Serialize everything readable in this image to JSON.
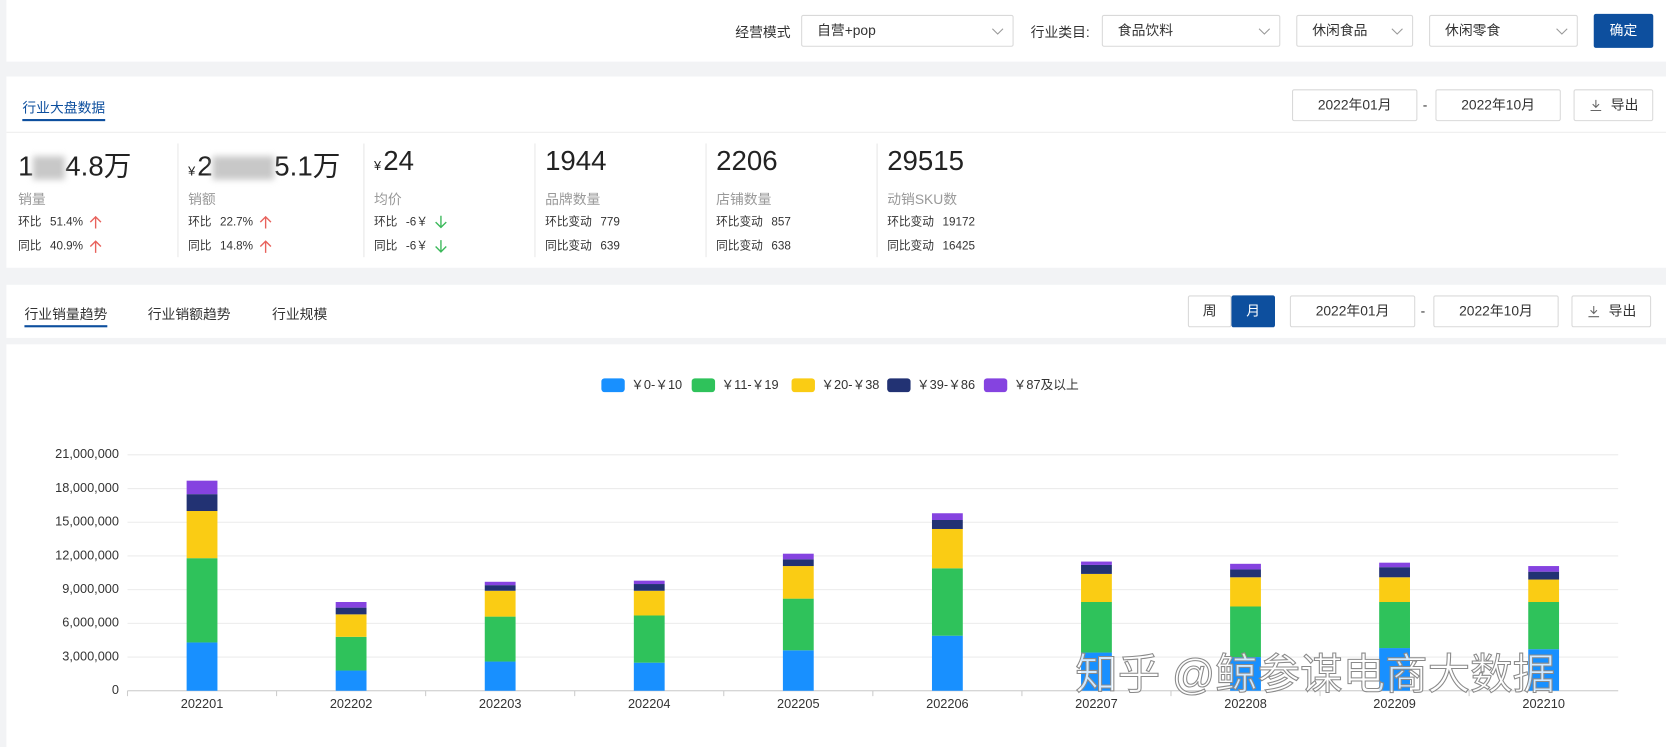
{
  "filters": [
    {
      "label": "经营模式",
      "value": "自营+pop"
    },
    {
      "label": "行业类目:",
      "value": "食品饮料"
    },
    {
      "value": "休闲食品"
    },
    {
      "value": "休闲零食"
    }
  ],
  "confirm": "确定",
  "overview": {
    "tab": "行业大盘数据",
    "date_from": "2022年01月",
    "date_sep": "-",
    "date_to": "2022年10月",
    "export": "导出",
    "metrics": [
      {
        "value_start": "1",
        "value_end": "4.8万",
        "label": "销量",
        "rows": [
          [
            "环比",
            "51.4%"
          ],
          [
            "同比",
            "40.9%"
          ]
        ]
      },
      {
        "currency": "¥",
        "value_start": "2",
        "value_end": "5.1万",
        "label": "销额",
        "rows": [
          [
            "环比",
            "22.7%"
          ],
          [
            "同比",
            "14.8%"
          ]
        ]
      },
      {
        "currency": "¥",
        "value": "24",
        "label": "均价",
        "rows": [
          [
            "环比",
            "-6￥"
          ],
          [
            "同比",
            "-6￥"
          ]
        ]
      },
      {
        "value": "1944",
        "label": "品牌数量",
        "rows": [
          [
            "环比变动",
            "779"
          ],
          [
            "同比变动",
            "639"
          ]
        ]
      },
      {
        "value": "2206",
        "label": "店铺数量",
        "rows": [
          [
            "环比变动",
            "857"
          ],
          [
            "同比变动",
            "638"
          ]
        ]
      },
      {
        "value": "29515",
        "label": "动销SKU数",
        "rows": [
          [
            "环比变动",
            "19172"
          ],
          [
            "同比变动",
            "16425"
          ]
        ]
      }
    ]
  },
  "trend": {
    "tabs": [
      "行业销量趋势",
      "行业销额趋势",
      "行业规模"
    ],
    "periods": [
      "周",
      "月"
    ],
    "date_from": "2022年01月",
    "date_sep": "-",
    "date_to": "2022年10月",
    "export": "导出"
  },
  "chart_data": {
    "type": "bar",
    "stacked": true,
    "categories": [
      "202201",
      "202202",
      "202203",
      "202204",
      "202205",
      "202206",
      "202207",
      "202208",
      "202209",
      "202210"
    ],
    "series": [
      {
        "name": "￥0-￥10",
        "color": "#1890ff",
        "values": [
          4300000,
          1800000,
          2600000,
          2500000,
          3600000,
          4900000,
          3400000,
          3000000,
          3800000,
          3700000
        ]
      },
      {
        "name": "￥11-￥19",
        "color": "#2fc25b",
        "values": [
          7500000,
          3000000,
          4000000,
          4200000,
          4600000,
          6000000,
          4500000,
          4500000,
          4100000,
          4200000
        ]
      },
      {
        "name": "￥20-￥38",
        "color": "#facc14",
        "values": [
          4200000,
          2000000,
          2300000,
          2200000,
          2900000,
          3500000,
          2500000,
          2600000,
          2200000,
          2000000
        ]
      },
      {
        "name": "￥39-￥86",
        "color": "#223273",
        "values": [
          1500000,
          600000,
          500000,
          600000,
          600000,
          800000,
          800000,
          700000,
          900000,
          700000
        ]
      },
      {
        "name": "￥87及以上",
        "color": "#8543e0",
        "values": [
          1200000,
          500000,
          300000,
          300000,
          500000,
          600000,
          300000,
          500000,
          400000,
          500000
        ]
      }
    ],
    "ylim": [
      0,
      21000000
    ],
    "yticks": [
      0,
      {
        "value": 3000000,
        "label": "3,000,000"
      },
      {
        "value": 6000000,
        "label": "6,000,000"
      },
      {
        "value": 9000000,
        "label": "9,000,000"
      },
      {
        "value": 12000000,
        "label": "12,000,000"
      },
      {
        "value": 15000000,
        "label": "15,000,000"
      },
      {
        "value": 18000000,
        "label": "18,000,000"
      },
      {
        "value": 21000000,
        "label": "21,000,000"
      }
    ],
    "grid": true,
    "legend": "top"
  },
  "watermark": "知乎 @鲸参谋电商大数据"
}
